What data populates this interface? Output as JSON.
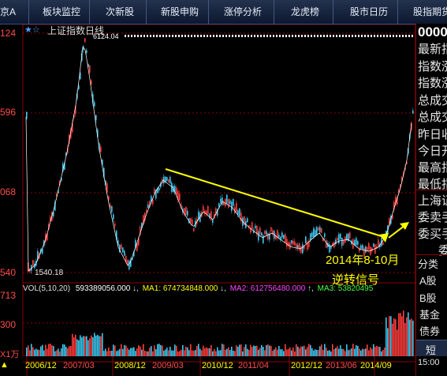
{
  "nav": {
    "left_cut": "京A",
    "items": [
      "板块监控",
      "次新股",
      "新股申购",
      "涨停分析",
      "龙虎榜",
      "股市日历",
      "股指期货"
    ]
  },
  "chart": {
    "title": "上证指数日线",
    "star": "★☆",
    "high_label": "6124.04",
    "low_label": "1540.18",
    "ytick_top": "124",
    "ytick_2": "596",
    "ytick_3": "068",
    "ytick_bottom": "540",
    "annotation_line1": "2014年8-10月",
    "annotation_line2": "逆转信号"
  },
  "volume_bar": {
    "vol_label": "VOL(5,10,20)",
    "vol_value": "593389056.000",
    "ma1": "MA1: 674734848.000",
    "ma2": "MA2: 612756480.000",
    "ma3": "MA3: 53820495",
    "ytick_top": "713",
    "ytick_mid": "300",
    "ytick_unit": "X1万"
  },
  "dates": {
    "labels": [
      "2006/12",
      "2007/03",
      "2008/12",
      "2009/03",
      "2010/12",
      "2011/04",
      "2012/12",
      "2013/06",
      "2014/09"
    ],
    "left_mark": "▲"
  },
  "sidebar": {
    "top_code": "0000",
    "items": [
      "最新指",
      "指数涨",
      "指数涨",
      "总成交",
      "总成交",
      "昨日收",
      "今日开",
      "最高指",
      "最低指",
      "上海证",
      "委卖手",
      "委买手",
      "委"
    ],
    "lower": [
      "分类",
      "A股",
      "B股",
      "基金",
      "债券"
    ],
    "bottom_btn": "短",
    "bottom_time": "15:00"
  },
  "colors": {
    "up": "#ff3c3c",
    "down": "#3cc8f0",
    "ma_white": "#ffffff",
    "trend": "#ffff00"
  }
}
